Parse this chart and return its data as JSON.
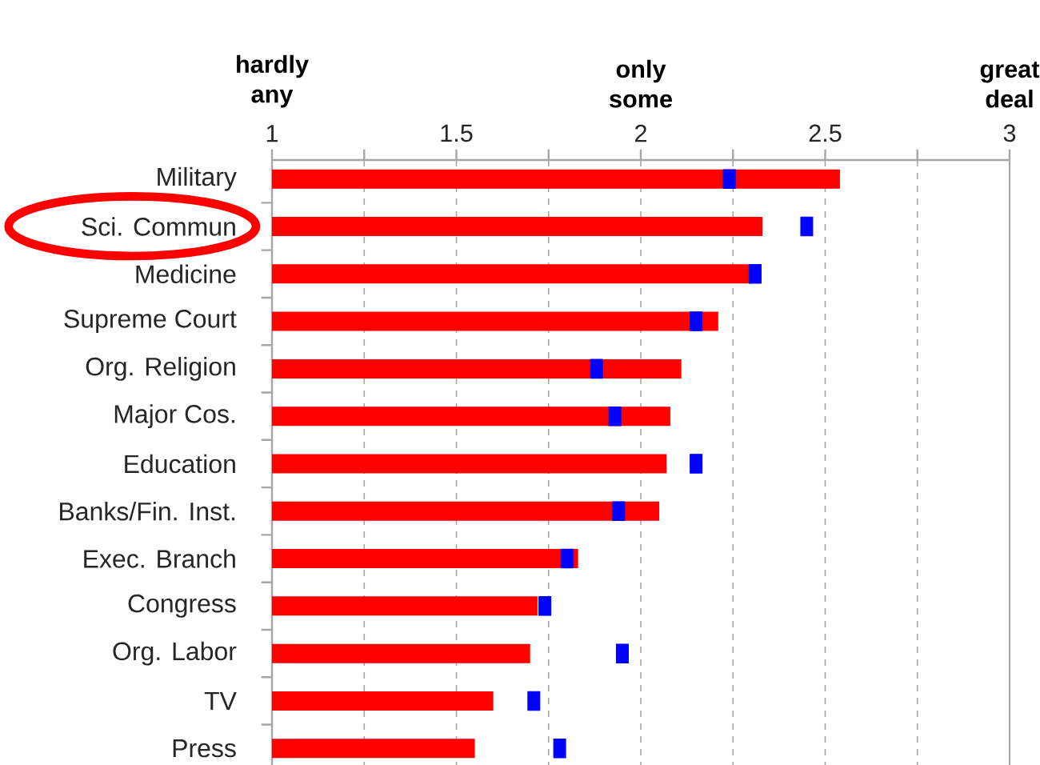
{
  "chart_data": {
    "type": "bar",
    "orientation": "horizontal",
    "categories": [
      "Military",
      "Sci. Commun",
      "Medicine",
      "Supreme Court",
      "Org. Religion",
      "Major Cos.",
      "Education",
      "Banks/Fin. Inst.",
      "Exec. Branch",
      "Congress",
      "Org. Labor",
      "TV",
      "Press"
    ],
    "series": [
      {
        "color": "#ff0000",
        "values": [
          2.54,
          2.33,
          2.3,
          2.21,
          2.11,
          2.08,
          2.07,
          2.05,
          1.83,
          1.72,
          1.7,
          1.6,
          1.55
        ]
      },
      {
        "type": "scatter",
        "marker": "square",
        "color": "#0000ff",
        "values": [
          2.24,
          2.45,
          2.31,
          2.15,
          1.88,
          1.93,
          2.15,
          1.94,
          1.8,
          1.74,
          1.95,
          1.71,
          1.78
        ]
      }
    ],
    "xlim": [
      1,
      3
    ],
    "xticks": [
      1,
      {
        "value": 1.25,
        "label": null
      },
      1.5,
      {
        "value": 1.75,
        "label": null
      },
      2,
      {
        "value": 2.25,
        "label": null
      },
      2.5,
      {
        "value": 2.75,
        "label": null
      },
      3
    ],
    "annotations": [
      "hardly any",
      "only some",
      "great deal"
    ],
    "grid": "x"
  }
}
